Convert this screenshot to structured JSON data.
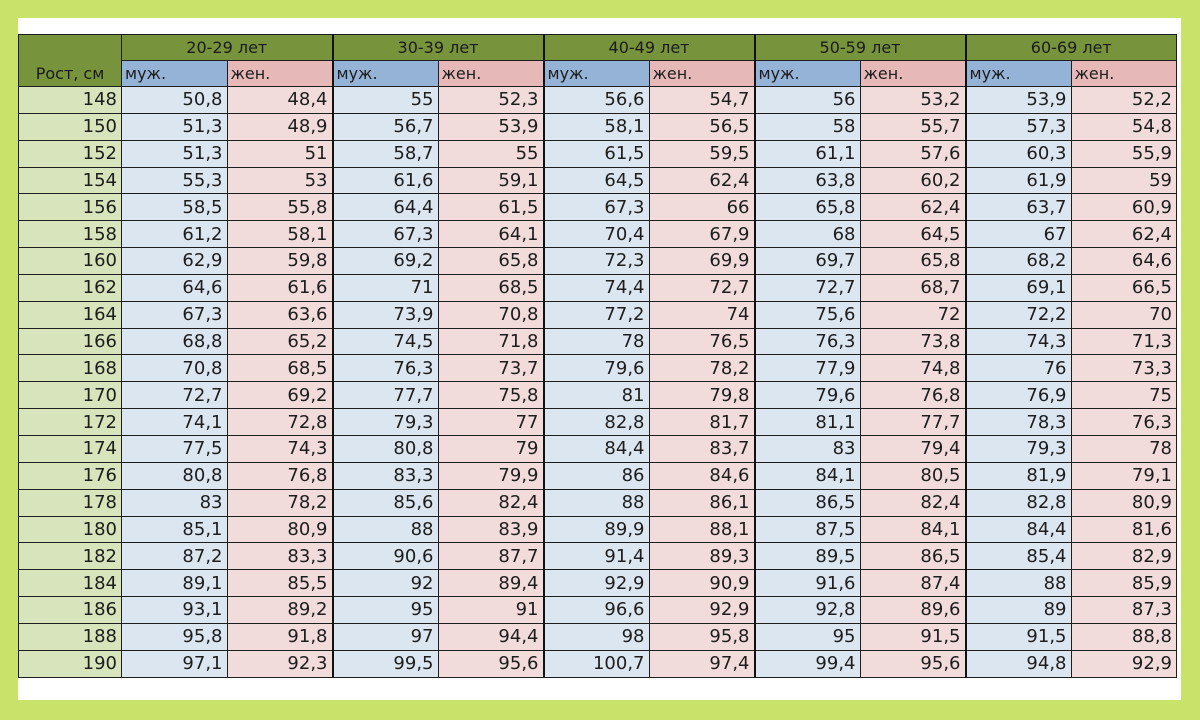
{
  "table": {
    "height_header": "Рост, см",
    "age_groups": [
      "20-29 лет",
      "30-39 лет",
      "40-49 лет",
      "50-59 лет",
      "60-69 лет"
    ],
    "male_label": "муж.",
    "female_label": "жен.",
    "colors": {
      "page_background": "#c9e26a",
      "group_header": "#77933c",
      "male_header": "#95b3d7",
      "female_header": "#e6b9b8",
      "height_cell": "#d8e4bc",
      "male_cell": "#dce6f1",
      "female_cell": "#f2dcdb"
    },
    "rows": [
      {
        "height": "148",
        "values": [
          "50,8",
          "48,4",
          "55",
          "52,3",
          "56,6",
          "54,7",
          "56",
          "53,2",
          "53,9",
          "52,2"
        ]
      },
      {
        "height": "150",
        "values": [
          "51,3",
          "48,9",
          "56,7",
          "53,9",
          "58,1",
          "56,5",
          "58",
          "55,7",
          "57,3",
          "54,8"
        ]
      },
      {
        "height": "152",
        "values": [
          "51,3",
          "51",
          "58,7",
          "55",
          "61,5",
          "59,5",
          "61,1",
          "57,6",
          "60,3",
          "55,9"
        ]
      },
      {
        "height": "154",
        "values": [
          "55,3",
          "53",
          "61,6",
          "59,1",
          "64,5",
          "62,4",
          "63,8",
          "60,2",
          "61,9",
          "59"
        ]
      },
      {
        "height": "156",
        "values": [
          "58,5",
          "55,8",
          "64,4",
          "61,5",
          "67,3",
          "66",
          "65,8",
          "62,4",
          "63,7",
          "60,9"
        ]
      },
      {
        "height": "158",
        "values": [
          "61,2",
          "58,1",
          "67,3",
          "64,1",
          "70,4",
          "67,9",
          "68",
          "64,5",
          "67",
          "62,4"
        ]
      },
      {
        "height": "160",
        "values": [
          "62,9",
          "59,8",
          "69,2",
          "65,8",
          "72,3",
          "69,9",
          "69,7",
          "65,8",
          "68,2",
          "64,6"
        ]
      },
      {
        "height": "162",
        "values": [
          "64,6",
          "61,6",
          "71",
          "68,5",
          "74,4",
          "72,7",
          "72,7",
          "68,7",
          "69,1",
          "66,5"
        ]
      },
      {
        "height": "164",
        "values": [
          "67,3",
          "63,6",
          "73,9",
          "70,8",
          "77,2",
          "74",
          "75,6",
          "72",
          "72,2",
          "70"
        ]
      },
      {
        "height": "166",
        "values": [
          "68,8",
          "65,2",
          "74,5",
          "71,8",
          "78",
          "76,5",
          "76,3",
          "73,8",
          "74,3",
          "71,3"
        ]
      },
      {
        "height": "168",
        "values": [
          "70,8",
          "68,5",
          "76,3",
          "73,7",
          "79,6",
          "78,2",
          "77,9",
          "74,8",
          "76",
          "73,3"
        ]
      },
      {
        "height": "170",
        "values": [
          "72,7",
          "69,2",
          "77,7",
          "75,8",
          "81",
          "79,8",
          "79,6",
          "76,8",
          "76,9",
          "75"
        ]
      },
      {
        "height": "172",
        "values": [
          "74,1",
          "72,8",
          "79,3",
          "77",
          "82,8",
          "81,7",
          "81,1",
          "77,7",
          "78,3",
          "76,3"
        ]
      },
      {
        "height": "174",
        "values": [
          "77,5",
          "74,3",
          "80,8",
          "79",
          "84,4",
          "83,7",
          "83",
          "79,4",
          "79,3",
          "78"
        ]
      },
      {
        "height": "176",
        "values": [
          "80,8",
          "76,8",
          "83,3",
          "79,9",
          "86",
          "84,6",
          "84,1",
          "80,5",
          "81,9",
          "79,1"
        ]
      },
      {
        "height": "178",
        "values": [
          "83",
          "78,2",
          "85,6",
          "82,4",
          "88",
          "86,1",
          "86,5",
          "82,4",
          "82,8",
          "80,9"
        ]
      },
      {
        "height": "180",
        "values": [
          "85,1",
          "80,9",
          "88",
          "83,9",
          "89,9",
          "88,1",
          "87,5",
          "84,1",
          "84,4",
          "81,6"
        ]
      },
      {
        "height": "182",
        "values": [
          "87,2",
          "83,3",
          "90,6",
          "87,7",
          "91,4",
          "89,3",
          "89,5",
          "86,5",
          "85,4",
          "82,9"
        ]
      },
      {
        "height": "184",
        "values": [
          "89,1",
          "85,5",
          "92",
          "89,4",
          "92,9",
          "90,9",
          "91,6",
          "87,4",
          "88",
          "85,9"
        ]
      },
      {
        "height": "186",
        "values": [
          "93,1",
          "89,2",
          "95",
          "91",
          "96,6",
          "92,9",
          "92,8",
          "89,6",
          "89",
          "87,3"
        ]
      },
      {
        "height": "188",
        "values": [
          "95,8",
          "91,8",
          "97",
          "94,4",
          "98",
          "95,8",
          "95",
          "91,5",
          "91,5",
          "88,8"
        ]
      },
      {
        "height": "190",
        "values": [
          "97,1",
          "92,3",
          "99,5",
          "95,6",
          "100,7",
          "97,4",
          "99,4",
          "95,6",
          "94,8",
          "92,9"
        ]
      }
    ]
  }
}
